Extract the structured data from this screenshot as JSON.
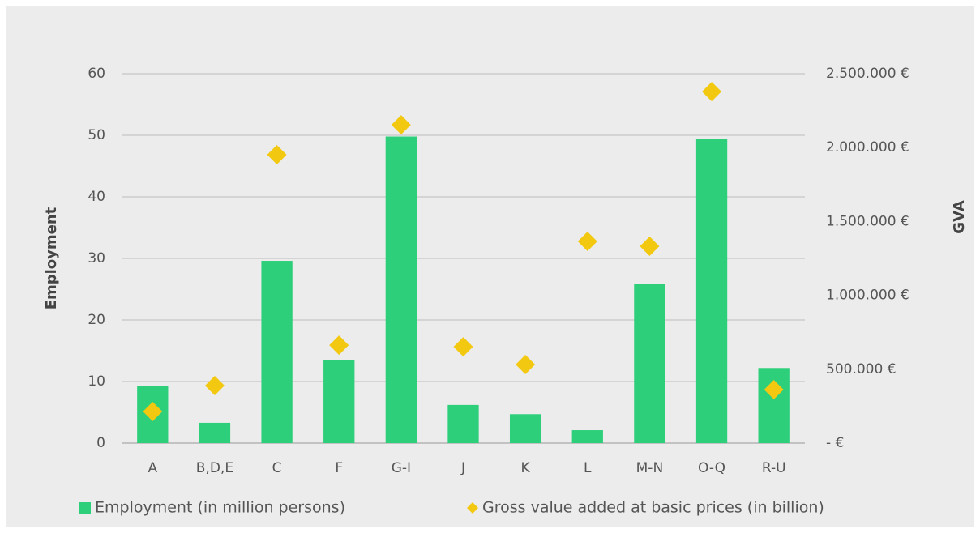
{
  "chart_data": {
    "type": "bar",
    "categories": [
      "A",
      "B,D,E",
      "C",
      "F",
      "G-I",
      "J",
      "K",
      "L",
      "M-N",
      "O-Q",
      "R-U"
    ],
    "series": [
      {
        "name": "Employment (in million persons)",
        "color": "#2ecf7a",
        "type": "bar",
        "values": [
          9.3,
          3.3,
          29.6,
          13.5,
          49.8,
          6.2,
          4.7,
          2.1,
          25.8,
          49.4,
          12.2
        ]
      },
      {
        "name": "Gross value added at basic prices (in billion)",
        "color": "#f2c811",
        "type": "scatter",
        "axis": "y2",
        "values": [
          214000,
          389000,
          1952000,
          663000,
          2154000,
          652000,
          532000,
          1365000,
          1332000,
          2379000,
          362000
        ]
      }
    ],
    "ylabel": "Employment",
    "y2label": "GVA",
    "ylim": [
      0,
      60
    ],
    "yticks": [
      0,
      10,
      20,
      30,
      40,
      50,
      60
    ],
    "y2lim": [
      0,
      2500000
    ],
    "y2ticks": [
      {
        "value": 0,
        "label": "-  €"
      },
      {
        "value": 500000,
        "label": "500.000 €"
      },
      {
        "value": 1000000,
        "label": "1.000.000 €"
      },
      {
        "value": 1500000,
        "label": "1.500.000 €"
      },
      {
        "value": 2000000,
        "label": "2.000.000 €"
      },
      {
        "value": 2500000,
        "label": "2.500.000 €"
      }
    ],
    "grid": true,
    "legend": "bottom"
  }
}
